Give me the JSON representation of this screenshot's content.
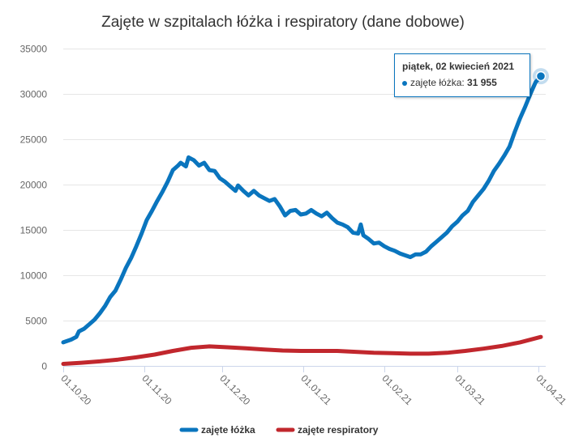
{
  "chart_data": {
    "type": "line",
    "title": "Zajęte w szpitalach łóżka i respiratory (dane dobowe)",
    "ylim": [
      0,
      35000
    ],
    "yticks": [
      "0",
      "5000",
      "10000",
      "15000",
      "20000",
      "25000",
      "30000",
      "35000"
    ],
    "ytick_values": [
      0,
      5000,
      10000,
      15000,
      20000,
      25000,
      30000,
      35000
    ],
    "xlim": [
      "2020-10-01",
      "2021-04-02"
    ],
    "xticks": [
      {
        "label": "01.10.20",
        "date": "2020-10-01"
      },
      {
        "label": "01.11.20",
        "date": "2020-11-01"
      },
      {
        "label": "01.12.20",
        "date": "2020-12-01"
      },
      {
        "label": "01.01.21",
        "date": "2021-01-01"
      },
      {
        "label": "01.02.21",
        "date": "2021-02-01"
      },
      {
        "label": "01.03.21",
        "date": "2021-03-01"
      },
      {
        "label": "01.04.21",
        "date": "2021-04-01"
      }
    ],
    "grid": true,
    "legend_position": "bottom-center",
    "series": [
      {
        "name": "zajęte łóżka",
        "color": "#0a75be",
        "points": [
          [
            "2020-10-01",
            2600
          ],
          [
            "2020-10-04",
            2900
          ],
          [
            "2020-10-06",
            3200
          ],
          [
            "2020-10-07",
            3800
          ],
          [
            "2020-10-09",
            4100
          ],
          [
            "2020-10-11",
            4600
          ],
          [
            "2020-10-13",
            5100
          ],
          [
            "2020-10-15",
            5800
          ],
          [
            "2020-10-17",
            6600
          ],
          [
            "2020-10-19",
            7600
          ],
          [
            "2020-10-21",
            8300
          ],
          [
            "2020-10-23",
            9500
          ],
          [
            "2020-10-25",
            10800
          ],
          [
            "2020-10-27",
            11900
          ],
          [
            "2020-10-29",
            13200
          ],
          [
            "2020-10-31",
            14600
          ],
          [
            "2020-11-02",
            16100
          ],
          [
            "2020-11-04",
            17100
          ],
          [
            "2020-11-06",
            18200
          ],
          [
            "2020-11-08",
            19200
          ],
          [
            "2020-11-10",
            20300
          ],
          [
            "2020-11-12",
            21600
          ],
          [
            "2020-11-14",
            22100
          ],
          [
            "2020-11-15",
            22400
          ],
          [
            "2020-11-17",
            22000
          ],
          [
            "2020-11-18",
            23000
          ],
          [
            "2020-11-20",
            22700
          ],
          [
            "2020-11-22",
            22100
          ],
          [
            "2020-11-24",
            22400
          ],
          [
            "2020-11-26",
            21600
          ],
          [
            "2020-11-28",
            21500
          ],
          [
            "2020-11-30",
            20700
          ],
          [
            "2020-12-02",
            20300
          ],
          [
            "2020-12-04",
            19800
          ],
          [
            "2020-12-06",
            19300
          ],
          [
            "2020-12-07",
            19900
          ],
          [
            "2020-12-09",
            19300
          ],
          [
            "2020-12-11",
            18800
          ],
          [
            "2020-12-13",
            19300
          ],
          [
            "2020-12-15",
            18800
          ],
          [
            "2020-12-17",
            18500
          ],
          [
            "2020-12-19",
            18200
          ],
          [
            "2020-12-21",
            18400
          ],
          [
            "2020-12-23",
            17600
          ],
          [
            "2020-12-25",
            16600
          ],
          [
            "2020-12-27",
            17100
          ],
          [
            "2020-12-29",
            17200
          ],
          [
            "2020-12-31",
            16700
          ],
          [
            "2021-01-02",
            16800
          ],
          [
            "2021-01-04",
            17200
          ],
          [
            "2021-01-06",
            16800
          ],
          [
            "2021-01-08",
            16500
          ],
          [
            "2021-01-10",
            16900
          ],
          [
            "2021-01-12",
            16300
          ],
          [
            "2021-01-14",
            15800
          ],
          [
            "2021-01-16",
            15600
          ],
          [
            "2021-01-18",
            15300
          ],
          [
            "2021-01-20",
            14700
          ],
          [
            "2021-01-22",
            14600
          ],
          [
            "2021-01-23",
            15600
          ],
          [
            "2021-01-24",
            14400
          ],
          [
            "2021-01-26",
            14000
          ],
          [
            "2021-01-28",
            13500
          ],
          [
            "2021-01-30",
            13600
          ],
          [
            "2021-02-01",
            13200
          ],
          [
            "2021-02-03",
            12900
          ],
          [
            "2021-02-05",
            12700
          ],
          [
            "2021-02-07",
            12400
          ],
          [
            "2021-02-09",
            12200
          ],
          [
            "2021-02-11",
            12000
          ],
          [
            "2021-02-13",
            12300
          ],
          [
            "2021-02-15",
            12300
          ],
          [
            "2021-02-17",
            12600
          ],
          [
            "2021-02-19",
            13200
          ],
          [
            "2021-02-21",
            13700
          ],
          [
            "2021-02-23",
            14200
          ],
          [
            "2021-02-25",
            14700
          ],
          [
            "2021-02-27",
            15400
          ],
          [
            "2021-03-01",
            15900
          ],
          [
            "2021-03-03",
            16600
          ],
          [
            "2021-03-05",
            17100
          ],
          [
            "2021-03-07",
            18100
          ],
          [
            "2021-03-09",
            18800
          ],
          [
            "2021-03-11",
            19500
          ],
          [
            "2021-03-13",
            20400
          ],
          [
            "2021-03-15",
            21500
          ],
          [
            "2021-03-17",
            22300
          ],
          [
            "2021-03-19",
            23200
          ],
          [
            "2021-03-21",
            24200
          ],
          [
            "2021-03-23",
            25800
          ],
          [
            "2021-03-25",
            27300
          ],
          [
            "2021-03-27",
            28600
          ],
          [
            "2021-03-29",
            30000
          ],
          [
            "2021-03-31",
            31300
          ],
          [
            "2021-04-02",
            31955
          ]
        ]
      },
      {
        "name": "zajęte respiratory",
        "color": "#c1272d",
        "points": [
          [
            "2020-10-01",
            220
          ],
          [
            "2020-10-08",
            350
          ],
          [
            "2020-10-15",
            500
          ],
          [
            "2020-10-22",
            700
          ],
          [
            "2020-10-29",
            950
          ],
          [
            "2020-11-05",
            1250
          ],
          [
            "2020-11-12",
            1650
          ],
          [
            "2020-11-19",
            2000
          ],
          [
            "2020-11-26",
            2150
          ],
          [
            "2020-12-03",
            2050
          ],
          [
            "2020-12-10",
            1950
          ],
          [
            "2020-12-17",
            1800
          ],
          [
            "2020-12-24",
            1700
          ],
          [
            "2020-12-31",
            1650
          ],
          [
            "2021-01-07",
            1650
          ],
          [
            "2021-01-14",
            1650
          ],
          [
            "2021-01-21",
            1550
          ],
          [
            "2021-01-28",
            1450
          ],
          [
            "2021-02-04",
            1400
          ],
          [
            "2021-02-11",
            1350
          ],
          [
            "2021-02-18",
            1350
          ],
          [
            "2021-02-25",
            1450
          ],
          [
            "2021-03-04",
            1650
          ],
          [
            "2021-03-11",
            1900
          ],
          [
            "2021-03-18",
            2200
          ],
          [
            "2021-03-25",
            2600
          ],
          [
            "2021-04-02",
            3200
          ]
        ]
      }
    ],
    "tooltip": {
      "date_label": "piątek, 02 kwiecień 2021",
      "series_label": "zajęte łóżka:",
      "value_label": "31 955"
    }
  }
}
